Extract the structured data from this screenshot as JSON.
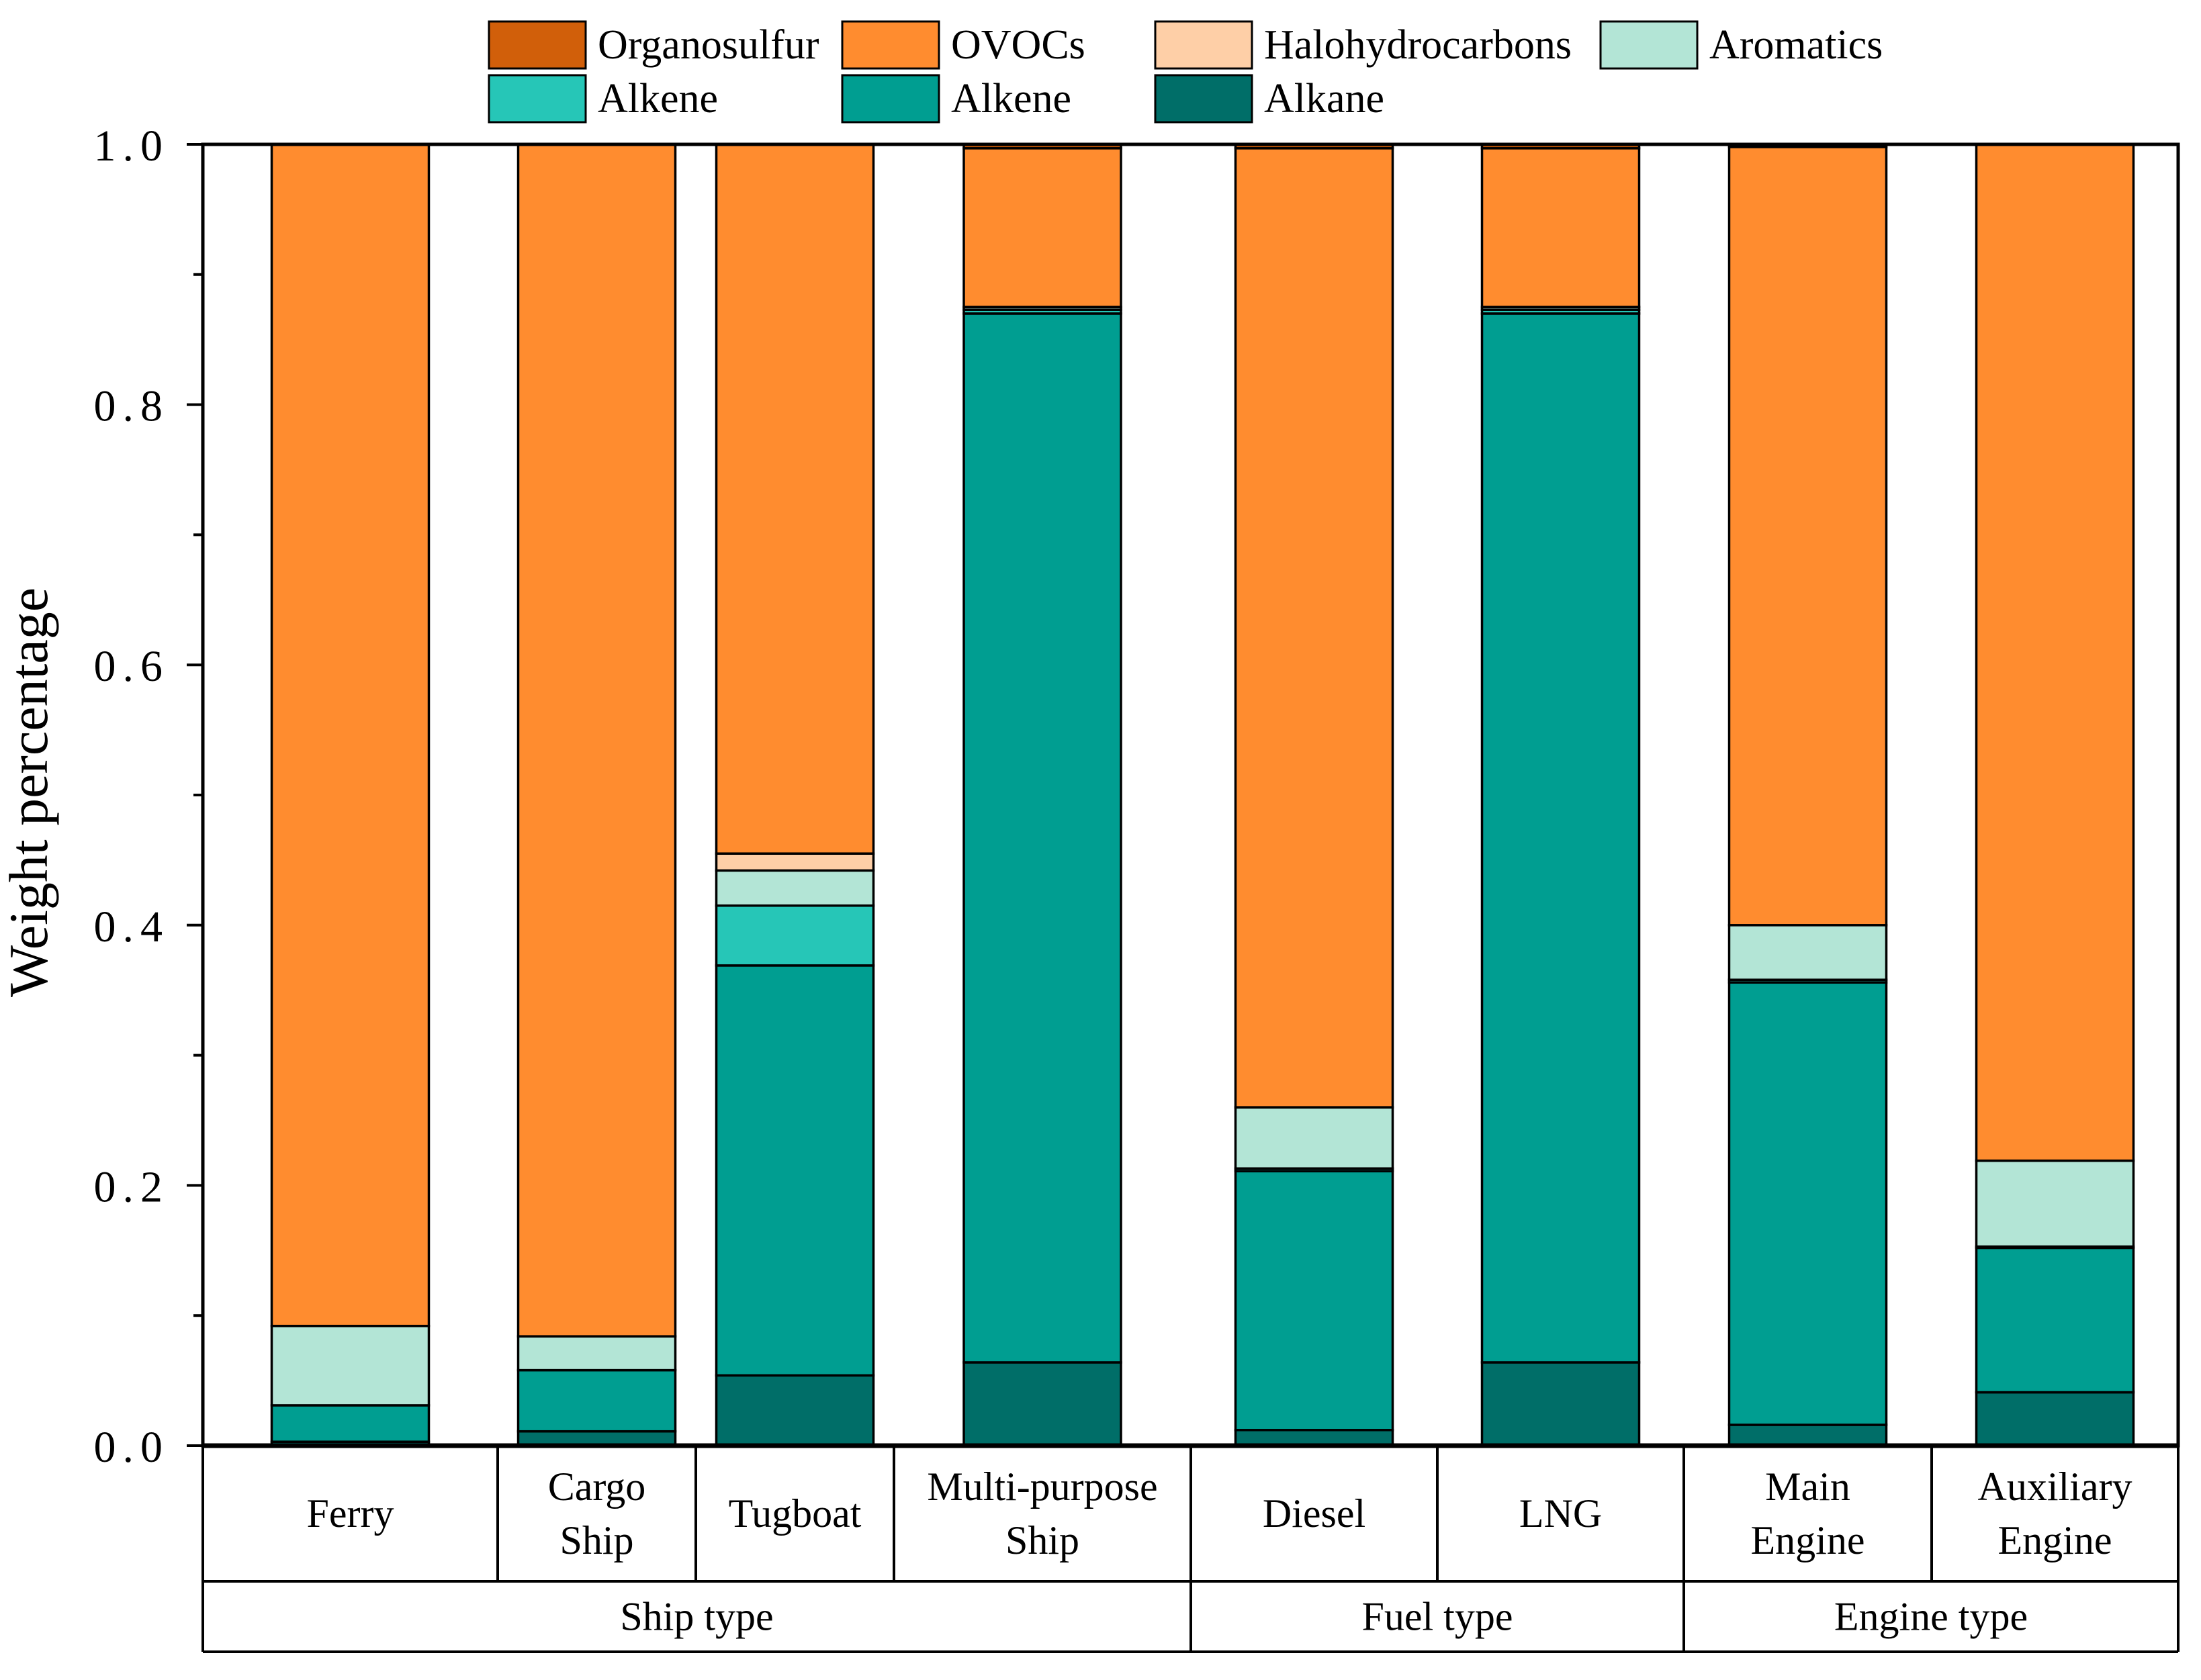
{
  "chart_data": {
    "type": "bar",
    "stacked": true,
    "title": "",
    "xlabel": "",
    "ylabel": "Weight percentage",
    "ylim": [
      0,
      1.0
    ],
    "yticks": [
      "0.0",
      "0.2",
      "0.4",
      "0.6",
      "0.8",
      "1.0"
    ],
    "grid": false,
    "legend_position": "top",
    "categories": [
      "Ferry",
      "Cargo Ship",
      "Tugboat",
      "Multi-purpose Ship",
      "Diesel",
      "LNG",
      "Main Engine",
      "Auxiliary Engine"
    ],
    "category_lines": [
      [
        "Ferry"
      ],
      [
        "Cargo",
        "Ship"
      ],
      [
        "Tugboat"
      ],
      [
        "Multi-purpose",
        "Ship"
      ],
      [
        "Diesel"
      ],
      [
        "LNG"
      ],
      [
        "Main",
        "Engine"
      ],
      [
        "Auxiliary",
        "Engine"
      ]
    ],
    "groups": [
      {
        "label": "Ship type",
        "categories": [
          "Ferry",
          "Cargo Ship",
          "Tugboat",
          "Multi-purpose Ship"
        ]
      },
      {
        "label": "Fuel type",
        "categories": [
          "Diesel",
          "LNG"
        ]
      },
      {
        "label": "Engine type",
        "categories": [
          "Main Engine",
          "Auxiliary Engine"
        ]
      }
    ],
    "series": [
      {
        "name": "Alkane",
        "color": "#006E68",
        "values": [
          0.003,
          0.011,
          0.054,
          0.064,
          0.012,
          0.064,
          0.016,
          0.041
        ]
      },
      {
        "name": "Alkene",
        "color": "#009E91",
        "values": [
          0.028,
          0.047,
          0.315,
          0.806,
          0.199,
          0.806,
          0.34,
          0.111
        ]
      },
      {
        "name": "Alkene",
        "color": "#26C6B7",
        "values": [
          0.0,
          0.0,
          0.046,
          0.003,
          0.002,
          0.003,
          0.002,
          0.001
        ]
      },
      {
        "name": "Aromatics",
        "color": "#B3E5D6",
        "values": [
          0.061,
          0.026,
          0.027,
          0.002,
          0.047,
          0.002,
          0.042,
          0.066
        ]
      },
      {
        "name": "Halohydrocarbons",
        "color": "#FECFA7",
        "values": [
          0.0,
          0.0,
          0.013,
          0.0,
          0.0,
          0.0,
          0.0,
          0.0
        ]
      },
      {
        "name": "OVOCs",
        "color": "#FF8C2F",
        "values": [
          0.908,
          0.916,
          0.545,
          0.122,
          0.737,
          0.122,
          0.598,
          0.781
        ]
      },
      {
        "name": "Organosulfur",
        "color": "#D15F0A",
        "values": [
          0.0,
          0.0,
          0.0,
          0.003,
          0.003,
          0.003,
          0.002,
          0.0
        ]
      }
    ],
    "legend": [
      {
        "name": "Organosulfur",
        "color": "#D15F0A"
      },
      {
        "name": "OVOCs",
        "color": "#FF8C2F"
      },
      {
        "name": "Halohydrocarbons",
        "color": "#FECFA7"
      },
      {
        "name": "Aromatics",
        "color": "#B3E5D6"
      },
      {
        "name": "Alkene",
        "color": "#26C6B7"
      },
      {
        "name": "Alkene",
        "color": "#009E91"
      },
      {
        "name": "Alkane",
        "color": "#006E68"
      }
    ]
  }
}
